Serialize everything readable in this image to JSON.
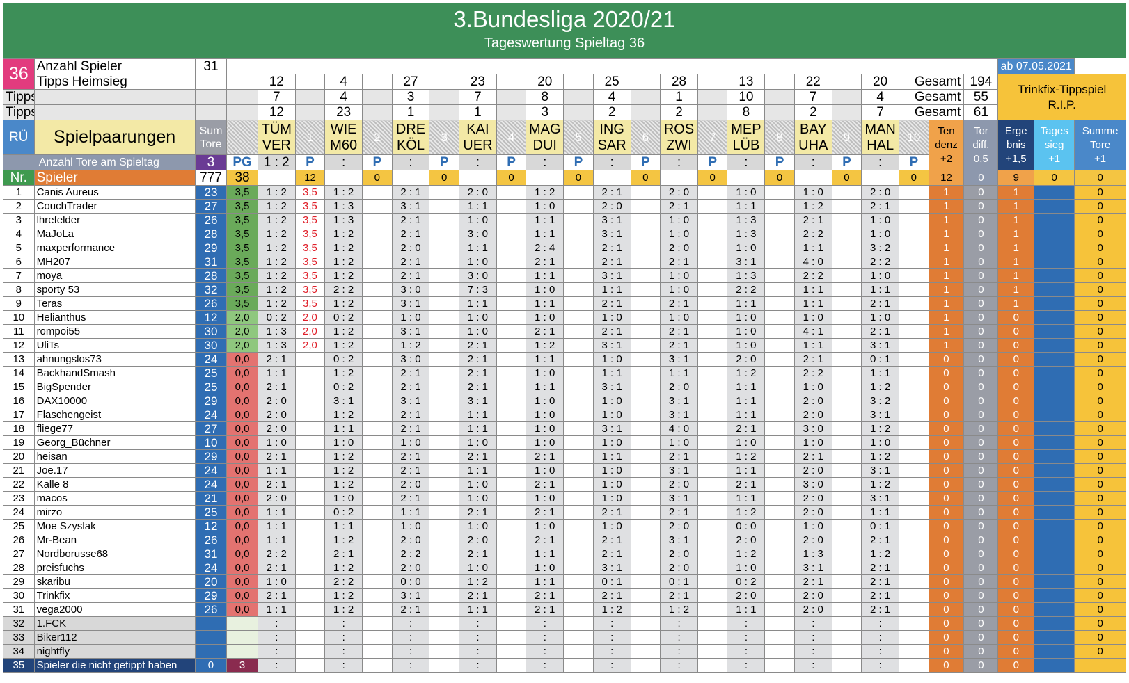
{
  "header": {
    "title": "3.Bundesliga 2020/21",
    "subtitle": "Tageswertung Spieltag 36"
  },
  "info": {
    "matchday": "36",
    "count_label": "Anzahl Spieler",
    "count": "31",
    "date": "ab 07.05.2021",
    "home_label": "Tipps Heimsieg",
    "draw_label": "Tipps Remis",
    "away_label": "Tipps Auswärtssiege",
    "total_label": "Gesamt",
    "home_total": "194",
    "draw_total": "55",
    "away_total": "61",
    "ad_line1": "Trinkfix-Tippspiel",
    "ad_line2": "R.I.P."
  },
  "tips": {
    "home": [
      "12",
      "4",
      "27",
      "23",
      "20",
      "25",
      "28",
      "13",
      "22",
      "20"
    ],
    "draw": [
      "7",
      "4",
      "3",
      "7",
      "8",
      "4",
      "1",
      "10",
      "7",
      "4"
    ],
    "away": [
      "12",
      "23",
      "1",
      "1",
      "3",
      "2",
      "2",
      "8",
      "2",
      "7"
    ]
  },
  "labels": {
    "ru": "RÜ",
    "pairings": "Spielpaarungen",
    "sum_tore_1": "Sum",
    "sum_tore_2": "Tore",
    "tore_spieltag": "Anzahl Tore am Spieltag",
    "tore_count": "3",
    "pg": "PG",
    "p": "P",
    "nr": "Nr.",
    "spieler": "Spieler",
    "total_goals": "777",
    "total_pg": "38",
    "tendenz_1": "Ten",
    "tendenz_2": "denz",
    "tendenz_3": "+2",
    "tordiff_1": "Tor",
    "tordiff_2": "diff.",
    "tordiff_3": "0,5",
    "ergebnis_1": "Erge",
    "ergebnis_2": "bnis",
    "ergebnis_3": "+1,5",
    "tagessieg_1": "Tages",
    "tagessieg_2": "sieg",
    "tagessieg_3": "+1",
    "summe_1": "Summe",
    "summe_2": "Tore",
    "summe_3": "+1",
    "sum_tendenz": "12",
    "sum_tordiff": "0",
    "sum_ergebnis": "9",
    "sum_tagessieg": "0",
    "sum_summe": "0",
    "not_tipped": "Spieler die nicht getippt haben",
    "not_tipped_count": "0",
    "not_tipped_pg": "3"
  },
  "matches": [
    {
      "home": "TÜM",
      "away": "VER",
      "result": "1 : 2",
      "pts": "12"
    },
    {
      "home": "WIE",
      "away": "M60",
      "result": ":",
      "pts": "0"
    },
    {
      "home": "DRE",
      "away": "KÖL",
      "result": ":",
      "pts": "0"
    },
    {
      "home": "KAI",
      "away": "UER",
      "result": ":",
      "pts": "0"
    },
    {
      "home": "MAG",
      "away": "DUI",
      "result": ":",
      "pts": "0"
    },
    {
      "home": "ING",
      "away": "SAR",
      "result": ":",
      "pts": "0"
    },
    {
      "home": "ROS",
      "away": "ZWI",
      "result": ":",
      "pts": "0"
    },
    {
      "home": "MEP",
      "away": "LÜB",
      "result": ":",
      "pts": "0"
    },
    {
      "home": "BAY",
      "away": "UHA",
      "result": ":",
      "pts": "0"
    },
    {
      "home": "MAN",
      "away": "HAL",
      "result": ":",
      "pts": "0"
    }
  ],
  "players": [
    {
      "nr": "1",
      "name": "Canis Aureus",
      "goals": "23",
      "pg": "3,5",
      "t": [
        "1 : 2",
        "1 : 2",
        "2 : 1",
        "2 : 0",
        "1 : 2",
        "2 : 1",
        "2 : 0",
        "1 : 0",
        "1 : 0",
        "2 : 0"
      ],
      "p1": "3,5",
      "ten": "1",
      "td": "0",
      "erg": "1",
      "ts": "",
      "st": "0"
    },
    {
      "nr": "2",
      "name": "CouchTrader",
      "goals": "27",
      "pg": "3,5",
      "t": [
        "1 : 2",
        "1 : 3",
        "3 : 1",
        "1 : 1",
        "1 : 0",
        "2 : 0",
        "2 : 1",
        "1 : 1",
        "1 : 2",
        "2 : 1"
      ],
      "p1": "3,5",
      "ten": "1",
      "td": "0",
      "erg": "1",
      "ts": "",
      "st": "0"
    },
    {
      "nr": "3",
      "name": "lhrefelder",
      "goals": "26",
      "pg": "3,5",
      "t": [
        "1 : 2",
        "1 : 3",
        "2 : 1",
        "1 : 0",
        "1 : 1",
        "3 : 1",
        "1 : 0",
        "1 : 3",
        "2 : 1",
        "1 : 0"
      ],
      "p1": "3,5",
      "ten": "1",
      "td": "0",
      "erg": "1",
      "ts": "",
      "st": "0"
    },
    {
      "nr": "4",
      "name": "MaJoLa",
      "goals": "28",
      "pg": "3,5",
      "t": [
        "1 : 2",
        "1 : 2",
        "2 : 1",
        "3 : 0",
        "1 : 1",
        "3 : 1",
        "1 : 0",
        "1 : 3",
        "2 : 2",
        "1 : 0"
      ],
      "p1": "3,5",
      "ten": "1",
      "td": "0",
      "erg": "1",
      "ts": "",
      "st": "0"
    },
    {
      "nr": "5",
      "name": "maxperformance",
      "goals": "29",
      "pg": "3,5",
      "t": [
        "1 : 2",
        "1 : 2",
        "2 : 0",
        "1 : 1",
        "2 : 4",
        "2 : 1",
        "2 : 0",
        "1 : 0",
        "1 : 1",
        "3 : 2"
      ],
      "p1": "3,5",
      "ten": "1",
      "td": "0",
      "erg": "1",
      "ts": "",
      "st": "0"
    },
    {
      "nr": "6",
      "name": "MH207",
      "goals": "31",
      "pg": "3,5",
      "t": [
        "1 : 2",
        "1 : 2",
        "2 : 1",
        "1 : 0",
        "2 : 1",
        "2 : 1",
        "2 : 1",
        "3 : 1",
        "4 : 0",
        "2 : 2"
      ],
      "p1": "3,5",
      "ten": "1",
      "td": "0",
      "erg": "1",
      "ts": "",
      "st": "0"
    },
    {
      "nr": "7",
      "name": "moya",
      "goals": "28",
      "pg": "3,5",
      "t": [
        "1 : 2",
        "1 : 2",
        "2 : 1",
        "3 : 0",
        "1 : 1",
        "3 : 1",
        "1 : 0",
        "1 : 3",
        "2 : 2",
        "1 : 0"
      ],
      "p1": "3,5",
      "ten": "1",
      "td": "0",
      "erg": "1",
      "ts": "",
      "st": "0"
    },
    {
      "nr": "8",
      "name": "sporty 53",
      "goals": "32",
      "pg": "3,5",
      "t": [
        "1 : 2",
        "2 : 2",
        "3 : 0",
        "7 : 3",
        "1 : 0",
        "1 : 1",
        "1 : 0",
        "2 : 2",
        "1 : 1",
        "1 : 1"
      ],
      "p1": "3,5",
      "ten": "1",
      "td": "0",
      "erg": "1",
      "ts": "",
      "st": "0"
    },
    {
      "nr": "9",
      "name": "Teras",
      "goals": "26",
      "pg": "3,5",
      "t": [
        "1 : 2",
        "1 : 2",
        "3 : 1",
        "1 : 1",
        "1 : 1",
        "2 : 1",
        "2 : 1",
        "1 : 1",
        "1 : 1",
        "2 : 1"
      ],
      "p1": "3,5",
      "ten": "1",
      "td": "0",
      "erg": "1",
      "ts": "",
      "st": "0"
    },
    {
      "nr": "10",
      "name": "Helianthus",
      "goals": "12",
      "pg": "2,0",
      "t": [
        "0 : 2",
        "0 : 2",
        "1 : 0",
        "1 : 0",
        "1 : 0",
        "1 : 0",
        "1 : 0",
        "1 : 0",
        "1 : 0",
        "1 : 0"
      ],
      "p1": "2,0",
      "ten": "1",
      "td": "0",
      "erg": "0",
      "ts": "",
      "st": "0"
    },
    {
      "nr": "11",
      "name": "rompoi55",
      "goals": "30",
      "pg": "2,0",
      "t": [
        "1 : 3",
        "1 : 2",
        "3 : 1",
        "1 : 0",
        "2 : 1",
        "2 : 1",
        "2 : 1",
        "1 : 0",
        "4 : 1",
        "2 : 1"
      ],
      "p1": "2,0",
      "ten": "1",
      "td": "0",
      "erg": "0",
      "ts": "",
      "st": "0"
    },
    {
      "nr": "12",
      "name": "UliTs",
      "goals": "30",
      "pg": "2,0",
      "t": [
        "1 : 3",
        "1 : 2",
        "1 : 2",
        "2 : 1",
        "1 : 2",
        "3 : 1",
        "2 : 1",
        "1 : 0",
        "1 : 1",
        "3 : 1"
      ],
      "p1": "2,0",
      "ten": "1",
      "td": "0",
      "erg": "0",
      "ts": "",
      "st": "0"
    },
    {
      "nr": "13",
      "name": "ahnungslos73",
      "goals": "24",
      "pg": "0,0",
      "t": [
        "2 : 1",
        "0 : 2",
        "3 : 0",
        "2 : 1",
        "1 : 1",
        "1 : 0",
        "3 : 1",
        "2 : 0",
        "2 : 1",
        "0 : 1"
      ],
      "p1": "",
      "ten": "0",
      "td": "0",
      "erg": "0",
      "ts": "",
      "st": "0"
    },
    {
      "nr": "14",
      "name": "BackhandSmash",
      "goals": "25",
      "pg": "0,0",
      "t": [
        "1 : 1",
        "1 : 2",
        "2 : 1",
        "2 : 1",
        "1 : 0",
        "1 : 1",
        "1 : 1",
        "1 : 2",
        "2 : 2",
        "1 : 1"
      ],
      "p1": "",
      "ten": "0",
      "td": "0",
      "erg": "0",
      "ts": "",
      "st": "0"
    },
    {
      "nr": "15",
      "name": "BigSpender",
      "goals": "25",
      "pg": "0,0",
      "t": [
        "2 : 1",
        "0 : 2",
        "2 : 1",
        "2 : 1",
        "1 : 1",
        "3 : 1",
        "2 : 0",
        "1 : 1",
        "1 : 0",
        "1 : 2"
      ],
      "p1": "",
      "ten": "0",
      "td": "0",
      "erg": "0",
      "ts": "",
      "st": "0"
    },
    {
      "nr": "16",
      "name": "DAX10000",
      "goals": "29",
      "pg": "0,0",
      "t": [
        "2 : 0",
        "3 : 1",
        "3 : 1",
        "3 : 1",
        "1 : 0",
        "1 : 0",
        "3 : 1",
        "1 : 1",
        "2 : 0",
        "3 : 2"
      ],
      "p1": "",
      "ten": "0",
      "td": "0",
      "erg": "0",
      "ts": "",
      "st": "0"
    },
    {
      "nr": "17",
      "name": "Flaschengeist",
      "goals": "24",
      "pg": "0,0",
      "t": [
        "2 : 0",
        "1 : 2",
        "2 : 1",
        "1 : 1",
        "1 : 0",
        "1 : 0",
        "3 : 1",
        "1 : 1",
        "2 : 0",
        "3 : 1"
      ],
      "p1": "",
      "ten": "0",
      "td": "0",
      "erg": "0",
      "ts": "",
      "st": "0"
    },
    {
      "nr": "18",
      "name": "fliege77",
      "goals": "27",
      "pg": "0,0",
      "t": [
        "2 : 0",
        "1 : 1",
        "2 : 1",
        "1 : 1",
        "1 : 0",
        "3 : 1",
        "4 : 0",
        "2 : 1",
        "3 : 0",
        "1 : 2"
      ],
      "p1": "",
      "ten": "0",
      "td": "0",
      "erg": "0",
      "ts": "",
      "st": "0"
    },
    {
      "nr": "19",
      "name": "Georg_Büchner",
      "goals": "10",
      "pg": "0,0",
      "t": [
        "1 : 0",
        "1 : 0",
        "1 : 0",
        "1 : 0",
        "1 : 0",
        "1 : 0",
        "1 : 0",
        "1 : 0",
        "1 : 0",
        "1 : 0"
      ],
      "p1": "",
      "ten": "0",
      "td": "0",
      "erg": "0",
      "ts": "",
      "st": "0"
    },
    {
      "nr": "20",
      "name": "heisan",
      "goals": "29",
      "pg": "0,0",
      "t": [
        "2 : 1",
        "1 : 2",
        "2 : 1",
        "2 : 1",
        "2 : 1",
        "1 : 1",
        "2 : 1",
        "1 : 2",
        "2 : 1",
        "1 : 2"
      ],
      "p1": "",
      "ten": "0",
      "td": "0",
      "erg": "0",
      "ts": "",
      "st": "0"
    },
    {
      "nr": "21",
      "name": "Joe.17",
      "goals": "24",
      "pg": "0,0",
      "t": [
        "1 : 1",
        "1 : 2",
        "2 : 1",
        "1 : 1",
        "1 : 0",
        "1 : 0",
        "3 : 1",
        "1 : 1",
        "2 : 0",
        "3 : 1"
      ],
      "p1": "",
      "ten": "0",
      "td": "0",
      "erg": "0",
      "ts": "",
      "st": "0"
    },
    {
      "nr": "22",
      "name": "Kalle 8",
      "goals": "24",
      "pg": "0,0",
      "t": [
        "2 : 1",
        "1 : 2",
        "2 : 0",
        "1 : 0",
        "2 : 1",
        "1 : 0",
        "2 : 0",
        "2 : 1",
        "3 : 0",
        "1 : 2"
      ],
      "p1": "",
      "ten": "0",
      "td": "0",
      "erg": "0",
      "ts": "",
      "st": "0"
    },
    {
      "nr": "23",
      "name": "macos",
      "goals": "21",
      "pg": "0,0",
      "t": [
        "2 : 0",
        "1 : 0",
        "2 : 1",
        "1 : 0",
        "1 : 0",
        "1 : 0",
        "3 : 1",
        "1 : 1",
        "2 : 0",
        "3 : 1"
      ],
      "p1": "",
      "ten": "0",
      "td": "0",
      "erg": "0",
      "ts": "",
      "st": "0"
    },
    {
      "nr": "24",
      "name": "mirzo",
      "goals": "25",
      "pg": "0,0",
      "t": [
        "1 : 1",
        "0 : 2",
        "1 : 1",
        "2 : 1",
        "2 : 1",
        "2 : 1",
        "2 : 1",
        "1 : 2",
        "2 : 0",
        "1 : 1"
      ],
      "p1": "",
      "ten": "0",
      "td": "0",
      "erg": "0",
      "ts": "",
      "st": "0"
    },
    {
      "nr": "25",
      "name": "Moe Szyslak",
      "goals": "12",
      "pg": "0,0",
      "t": [
        "1 : 1",
        "1 : 1",
        "1 : 0",
        "1 : 0",
        "1 : 0",
        "1 : 0",
        "2 : 0",
        "0 : 0",
        "1 : 0",
        "0 : 1"
      ],
      "p1": "",
      "ten": "0",
      "td": "0",
      "erg": "0",
      "ts": "",
      "st": "0"
    },
    {
      "nr": "26",
      "name": "Mr-Bean",
      "goals": "26",
      "pg": "0,0",
      "t": [
        "1 : 1",
        "1 : 2",
        "2 : 0",
        "2 : 0",
        "2 : 1",
        "2 : 1",
        "3 : 1",
        "2 : 0",
        "2 : 0",
        "2 : 1"
      ],
      "p1": "",
      "ten": "0",
      "td": "0",
      "erg": "0",
      "ts": "",
      "st": "0"
    },
    {
      "nr": "27",
      "name": "Nordborusse68",
      "goals": "31",
      "pg": "0,0",
      "t": [
        "2 : 2",
        "2 : 1",
        "2 : 2",
        "2 : 1",
        "1 : 1",
        "2 : 1",
        "2 : 0",
        "1 : 2",
        "1 : 3",
        "1 : 2"
      ],
      "p1": "",
      "ten": "0",
      "td": "0",
      "erg": "0",
      "ts": "",
      "st": "0"
    },
    {
      "nr": "28",
      "name": "preisfuchs",
      "goals": "24",
      "pg": "0,0",
      "t": [
        "2 : 1",
        "1 : 2",
        "2 : 0",
        "1 : 0",
        "1 : 0",
        "3 : 1",
        "2 : 0",
        "1 : 0",
        "3 : 1",
        "2 : 1"
      ],
      "p1": "",
      "ten": "0",
      "td": "0",
      "erg": "0",
      "ts": "",
      "st": "0"
    },
    {
      "nr": "29",
      "name": "skaribu",
      "goals": "20",
      "pg": "0,0",
      "t": [
        "1 : 0",
        "2 : 2",
        "0 : 0",
        "1 : 2",
        "1 : 1",
        "0 : 1",
        "0 : 1",
        "0 : 2",
        "2 : 1",
        "2 : 1"
      ],
      "p1": "",
      "ten": "0",
      "td": "0",
      "erg": "0",
      "ts": "",
      "st": "0"
    },
    {
      "nr": "30",
      "name": "Trinkfix",
      "goals": "29",
      "pg": "0,0",
      "t": [
        "2 : 1",
        "1 : 2",
        "3 : 1",
        "2 : 1",
        "2 : 1",
        "2 : 1",
        "2 : 1",
        "2 : 0",
        "2 : 0",
        "2 : 1"
      ],
      "p1": "",
      "ten": "0",
      "td": "0",
      "erg": "0",
      "ts": "",
      "st": "0"
    },
    {
      "nr": "31",
      "name": "vega2000",
      "goals": "26",
      "pg": "0,0",
      "t": [
        "1 : 1",
        "1 : 2",
        "2 : 1",
        "1 : 1",
        "2 : 1",
        "1 : 2",
        "1 : 2",
        "1 : 1",
        "2 : 0",
        "2 : 1"
      ],
      "p1": "",
      "ten": "0",
      "td": "0",
      "erg": "0",
      "ts": "",
      "st": "0"
    }
  ],
  "nontippers": [
    {
      "nr": "32",
      "name": "1.FCK",
      "placeholder": ":",
      "ten": "0",
      "td": "0",
      "erg": "0",
      "st": "0"
    },
    {
      "nr": "33",
      "name": "Biker112",
      "placeholder": ":",
      "ten": "0",
      "td": "0",
      "erg": "0",
      "st": "0"
    },
    {
      "nr": "34",
      "name": "nightfly",
      "placeholder": ":",
      "ten": "0",
      "td": "0",
      "erg": "0",
      "st": "0"
    }
  ],
  "footer": {
    "nr": "35",
    "placeholder": ":",
    "ten": "0",
    "td": "0",
    "erg": "0"
  }
}
